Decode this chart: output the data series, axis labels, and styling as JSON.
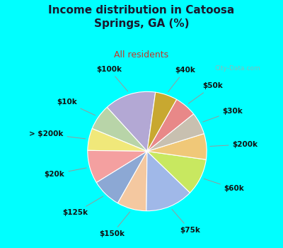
{
  "title": "Income distribution in Catoosa\nSprings, GA (%)",
  "subtitle": "All residents",
  "labels": [
    "$100k",
    "$10k",
    "> $200k",
    "$20k",
    "$125k",
    "$150k",
    "$75k",
    "$60k",
    "$200k",
    "$30k",
    "$50k",
    "$40k"
  ],
  "values": [
    14,
    7,
    6,
    9,
    8,
    8,
    13,
    10,
    7,
    6,
    6,
    6
  ],
  "colors": [
    "#b3a8d4",
    "#b8d4a8",
    "#f0e87a",
    "#f4a0a0",
    "#8ca8d4",
    "#f4c8a0",
    "#a0b8e8",
    "#c8e860",
    "#f0c878",
    "#c8c0b0",
    "#e88888",
    "#c8a830"
  ],
  "startangle": 82,
  "bg_color": "#00ffff",
  "chart_bg": "#e8f5f2",
  "title_color": "#1a1a2e",
  "subtitle_color": "#c0392b",
  "watermark": "City-Data.com"
}
